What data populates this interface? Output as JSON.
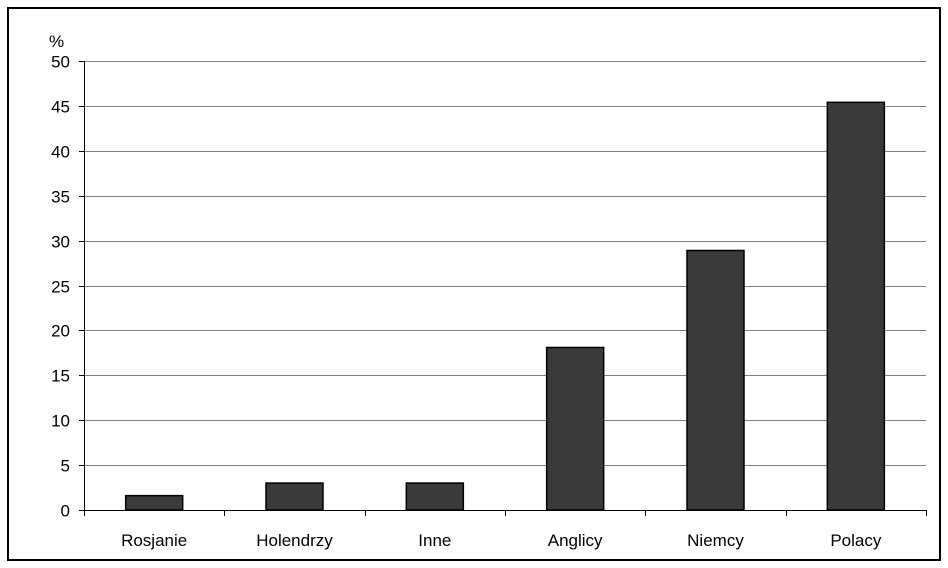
{
  "chart_data": {
    "type": "bar",
    "title": "",
    "xlabel": "",
    "ylabel": "%",
    "categories": [
      "Rosjanie",
      "Holendrzy",
      "Inne",
      "Anglicy",
      "Niemcy",
      "Polacy"
    ],
    "values": [
      1.6,
      3.0,
      3.0,
      18.1,
      28.9,
      45.4
    ],
    "ylim": [
      0,
      50
    ],
    "yticks": [
      0,
      5,
      10,
      15,
      20,
      25,
      30,
      35,
      40,
      45,
      50
    ],
    "grid": true,
    "legend": "none",
    "bar_color": "#3a3a3a",
    "grid_color": "#000000"
  }
}
